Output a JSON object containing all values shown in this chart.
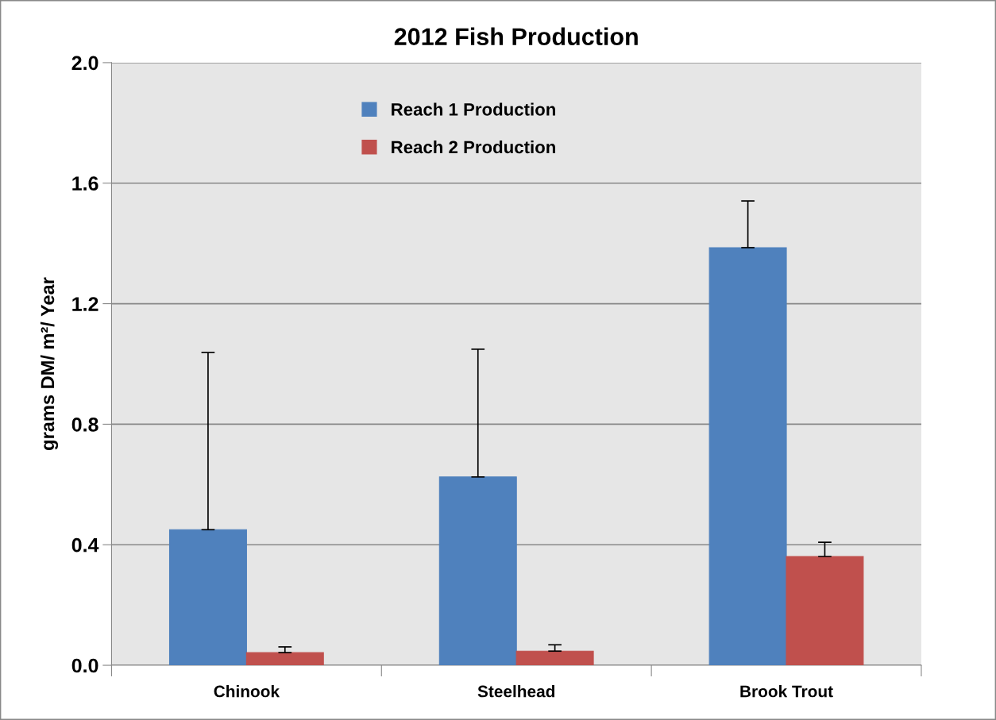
{
  "chart_data": {
    "type": "bar",
    "title": "2012 Fish Production",
    "ylabel": "grams DM/ m²/ Year",
    "categories": [
      "Chinook",
      "Steelhead",
      "Brook Trout"
    ],
    "series": [
      {
        "name": "Reach 1 Production",
        "color": "#4f81bd",
        "values": [
          0.45,
          0.625,
          1.386
        ],
        "errors": [
          [
            0.45,
            1.038
          ],
          [
            0.625,
            1.049
          ],
          [
            1.386,
            1.541
          ]
        ]
      },
      {
        "name": "Reach 2 Production",
        "color": "#c0504d",
        "values": [
          0.042,
          0.047,
          0.361
        ],
        "errors": [
          [
            0.042,
            0.061
          ],
          [
            0.047,
            0.068
          ],
          [
            0.361,
            0.408
          ]
        ]
      }
    ],
    "ylim": [
      0,
      2.0
    ],
    "yticks": [
      {
        "value": 0,
        "label": "0.0"
      },
      {
        "value": 0.4,
        "label": "0.4"
      },
      {
        "value": 0.8,
        "label": "0.8"
      },
      {
        "value": 1.2,
        "label": "1.2"
      },
      {
        "value": 1.6,
        "label": "1.6"
      },
      {
        "value": 2.0,
        "label": "2.0"
      }
    ],
    "grid": "y",
    "legend": "top"
  }
}
